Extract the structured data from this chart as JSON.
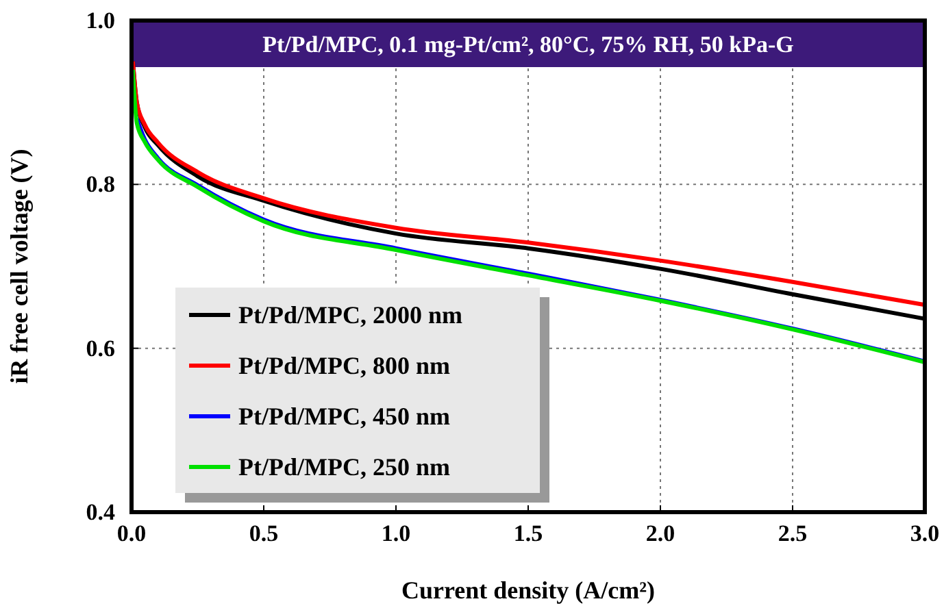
{
  "chart_data": {
    "type": "line",
    "title": "Pt/Pd/MPC, 0.1 mg-Pt/cm², 80°C, 75% RH, 50 kPa-G",
    "xlabel": "Current density (A/cm²)",
    "ylabel": "iR free cell voltage (V)",
    "xlim": [
      0,
      3
    ],
    "ylim": [
      0.4,
      1.0
    ],
    "xticks": [
      {
        "value": 0,
        "label": "0.0"
      },
      0.5,
      {
        "value": 1,
        "label": "1.0"
      },
      1.5,
      {
        "value": 2,
        "label": "2.0"
      },
      2.5,
      {
        "value": 3,
        "label": "3.0"
      }
    ],
    "yticks": [
      0.4,
      0.6,
      0.8,
      {
        "value": 1,
        "label": "1.0"
      }
    ],
    "grid": true,
    "legend": "bottom left",
    "line_style": "solid",
    "marker": "none",
    "series": [
      {
        "name": "Pt/Pd/MPC, 2000 nm",
        "color": "#000000",
        "x": [
          0.005,
          0.02,
          0.05,
          0.1,
          0.25,
          0.5,
          1.0,
          1.5,
          2.0,
          2.5,
          3.0
        ],
        "values": [
          0.95,
          0.9,
          0.87,
          0.848,
          0.81,
          0.78,
          0.74,
          0.722,
          0.697,
          0.666,
          0.636
        ]
      },
      {
        "name": "Pt/Pd/MPC, 800 nm",
        "color": "#ff0000",
        "x": [
          0.005,
          0.02,
          0.05,
          0.1,
          0.25,
          0.5,
          1.0,
          1.5,
          2.0,
          2.5,
          3.0
        ],
        "values": [
          0.95,
          0.9,
          0.873,
          0.851,
          0.815,
          0.783,
          0.747,
          0.729,
          0.707,
          0.681,
          0.653
        ]
      },
      {
        "name": "Pt/Pd/MPC, 450 nm",
        "color": "#0000ff",
        "x": [
          0.02,
          0.05,
          0.1,
          0.25,
          0.5,
          1.0,
          1.5,
          2.0,
          2.5,
          3.0
        ],
        "values": [
          0.88,
          0.855,
          0.832,
          0.799,
          0.757,
          0.722,
          0.691,
          0.659,
          0.624,
          0.584
        ]
      },
      {
        "name": "Pt/Pd/MPC, 250 nm",
        "color": "#00e000",
        "x": [
          0.005,
          0.02,
          0.05,
          0.1,
          0.25,
          0.5,
          1.0,
          1.5,
          2.0,
          2.5,
          3.0
        ],
        "values": [
          0.94,
          0.875,
          0.852,
          0.83,
          0.797,
          0.755,
          0.72,
          0.689,
          0.658,
          0.623,
          0.583
        ]
      }
    ]
  }
}
